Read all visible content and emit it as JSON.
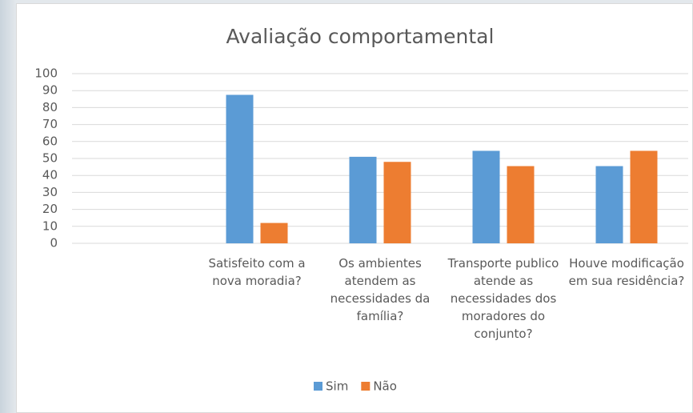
{
  "chart_data": {
    "type": "bar",
    "title": "Avaliação comportamental",
    "categories": [
      null,
      "Satisfeito com a nova moradia?",
      "Os ambientes atendem as necessidades da família?",
      "Transporte publico atende as necessidades dos moradores do conjunto?",
      "Houve modificação em sua residência?"
    ],
    "series": [
      {
        "name": "Sim",
        "color": "#5b9bd5",
        "values": [
          null,
          87.5,
          51,
          54.5,
          45.5
        ]
      },
      {
        "name": "Não",
        "color": "#ed7d31",
        "values": [
          null,
          12,
          48,
          45.5,
          54.5
        ]
      }
    ],
    "ylim": [
      0,
      100
    ],
    "yticks": [
      0,
      10,
      20,
      30,
      40,
      50,
      60,
      70,
      80,
      90,
      100
    ],
    "grid": true,
    "legend": "bottom"
  }
}
